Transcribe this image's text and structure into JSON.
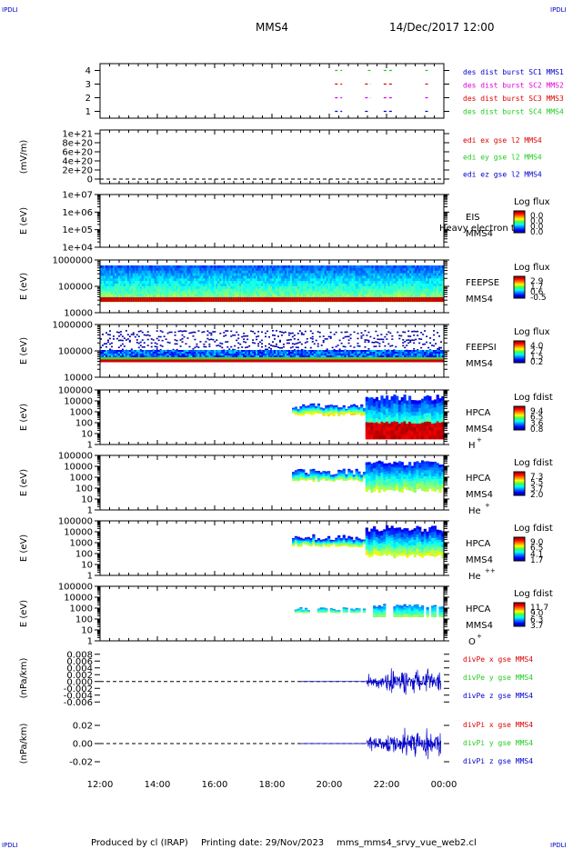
{
  "header": {
    "corner_tl": "IPDLI",
    "corner_tr": "IPDLI",
    "corner_bl": "IPDLI",
    "corner_br": "IPDLI",
    "spacecraft": "MMS4",
    "date": "14/Dec/2017 12:00"
  },
  "footer": {
    "produced_by": "Produced by cl (IRAP)",
    "printing_date": "Printing date: 29/Nov/2023",
    "script": "mms_mms4_srvy_vue_web2.cl"
  },
  "colors": {
    "red": "#dd0000",
    "green": "#22cc22",
    "blue": "#0000cc",
    "magenta": "#dd00dd"
  },
  "chart_data": [
    {
      "id": "burst",
      "type": "scatter",
      "ylim": [
        0.5,
        4.5
      ],
      "yticks": [
        "1",
        "2",
        "3",
        "4"
      ],
      "legend": [
        "des dist burst SC1 MMS1",
        "des dist burst SC2 MMS2",
        "des dist burst SC3 MMS3",
        "des dist burst SC4 MMS4"
      ],
      "legend_colors": [
        "#0000cc",
        "#dd00dd",
        "#dd0000",
        "#22cc22"
      ],
      "segments": [
        {
          "level": 1,
          "color": "#0000cc",
          "intervals": [
            [
              20.2,
              20.45
            ],
            [
              21.25,
              21.4
            ],
            [
              21.9,
              22.2
            ],
            [
              23.35,
              23.5
            ]
          ]
        },
        {
          "level": 2,
          "color": "#dd00dd",
          "intervals": [
            [
              20.2,
              20.45
            ],
            [
              21.25,
              21.45
            ],
            [
              21.9,
              22.2
            ],
            [
              23.35,
              23.5
            ]
          ]
        },
        {
          "level": 3,
          "color": "#dd0000",
          "intervals": [
            [
              20.2,
              20.45
            ],
            [
              21.25,
              21.45
            ],
            [
              21.9,
              22.2
            ],
            [
              23.35,
              23.5
            ]
          ]
        },
        {
          "level": 4,
          "color": "#22cc22",
          "intervals": [
            [
              20.2,
              20.45
            ],
            [
              21.35,
              21.5
            ],
            [
              21.9,
              22.2
            ],
            [
              23.35,
              23.5
            ]
          ]
        }
      ]
    },
    {
      "id": "edi",
      "type": "line",
      "ylabel": "(mV/m)",
      "yticks": [
        "0",
        "2e+20",
        "4e+20",
        "6e+20",
        "8e+20",
        "1e+21"
      ],
      "legend": [
        "edi ex gse l2 MMS4",
        "edi ey gse l2 MMS4",
        "edi ez gse l2 MMS4"
      ],
      "legend_colors": [
        "#dd0000",
        "#22cc22",
        "#0000cc"
      ]
    },
    {
      "id": "eis",
      "type": "heatmap",
      "ylabel": "E (eV)",
      "yticks": [
        "1e+04",
        "1e+05",
        "1e+06",
        "1e+07"
      ],
      "instrument": "EIS",
      "spacecraft": "MMS4",
      "overlay": "Heavy electron to",
      "colorbar_title": "Log flux",
      "colorbar_ticks": [
        "0.0",
        "0.0",
        "0.0",
        "0.0"
      ]
    },
    {
      "id": "feepse",
      "type": "heatmap",
      "ylabel": "E (eV)",
      "yticks": [
        "10000",
        "100000",
        "1000000"
      ],
      "instrument": "FEEPSE",
      "spacecraft": "MMS4",
      "colorbar_title": "Log flux",
      "colorbar_ticks": [
        "2.9",
        "1.7",
        "0.6",
        "-0.5"
      ]
    },
    {
      "id": "feepsi",
      "type": "heatmap",
      "ylabel": "E (eV)",
      "yticks": [
        "10000",
        "100000",
        "1000000"
      ],
      "instrument": "FEEPSI",
      "spacecraft": "MMS4",
      "colorbar_title": "Log flux",
      "colorbar_ticks": [
        "4.0",
        "2.7",
        "1.5",
        "0.2"
      ]
    },
    {
      "id": "hpca_h",
      "type": "heatmap",
      "ylabel": "E (eV)",
      "yticks": [
        "1",
        "10",
        "100",
        "1000",
        "10000",
        "100000"
      ],
      "instrument": "HPCA",
      "spacecraft": "MMS4",
      "species": "H",
      "charge": "+",
      "colorbar_title": "Log fdist",
      "colorbar_ticks": [
        "9.4",
        "6.5",
        "3.6",
        "0.8"
      ],
      "start_hour": 18.7
    },
    {
      "id": "hpca_he",
      "type": "heatmap",
      "ylabel": "E (eV)",
      "yticks": [
        "1",
        "10",
        "100",
        "1000",
        "10000",
        "100000"
      ],
      "instrument": "HPCA",
      "spacecraft": "MMS4",
      "species": "He",
      "charge": "+",
      "colorbar_title": "Log fdist",
      "colorbar_ticks": [
        "7.3",
        "5.5",
        "3.7",
        "2.0"
      ],
      "start_hour": 18.7
    },
    {
      "id": "hpca_he2",
      "type": "heatmap",
      "ylabel": "E (eV)",
      "yticks": [
        "1",
        "10",
        "100",
        "1000",
        "10000",
        "100000"
      ],
      "instrument": "HPCA",
      "spacecraft": "MMS4",
      "species": "He",
      "charge": "++",
      "colorbar_title": "Log fdist",
      "colorbar_ticks": [
        "9.0",
        "6.5",
        "4.1",
        "1.7"
      ],
      "start_hour": 18.7
    },
    {
      "id": "hpca_o",
      "type": "heatmap",
      "ylabel": "E (eV)",
      "yticks": [
        "1",
        "10",
        "100",
        "1000",
        "10000",
        "100000"
      ],
      "instrument": "HPCA",
      "spacecraft": "MMS4",
      "species": "O",
      "charge": "+",
      "colorbar_title": "Log fdist",
      "colorbar_ticks": [
        "11.7",
        "9.0",
        "6.3",
        "3.7"
      ],
      "start_hour": 18.7
    },
    {
      "id": "divpe",
      "type": "line",
      "ylabel": "(nPa/km)",
      "ylim": [
        -0.007,
        0.009
      ],
      "yticks": [
        "-0.006",
        "-0.004",
        "-0.002",
        "0.000",
        "0.002",
        "0.004",
        "0.006",
        "0.008"
      ],
      "legend": [
        "divPe x gse MMS4",
        "divPe y gse MMS4",
        "divPe z gse MMS4"
      ],
      "legend_colors": [
        "#dd0000",
        "#22cc22",
        "#0000cc"
      ]
    },
    {
      "id": "divpi",
      "type": "line",
      "ylabel": "(nPa/km)",
      "ylim": [
        -0.03,
        0.03
      ],
      "yticks": [
        "-0.02",
        "0.00",
        "0.02"
      ],
      "legend": [
        "divPi x gse MMS4",
        "divPi y gse MMS4",
        "divPi z gse MMS4"
      ],
      "legend_colors": [
        "#dd0000",
        "#22cc22",
        "#0000cc"
      ]
    }
  ],
  "xaxis": {
    "xlim": [
      12,
      24
    ],
    "ticks": [
      12,
      14,
      16,
      18,
      20,
      22,
      24
    ],
    "labels": [
      "12:00",
      "14:00",
      "16:00",
      "18:00",
      "20:00",
      "22:00",
      "00:00"
    ]
  }
}
